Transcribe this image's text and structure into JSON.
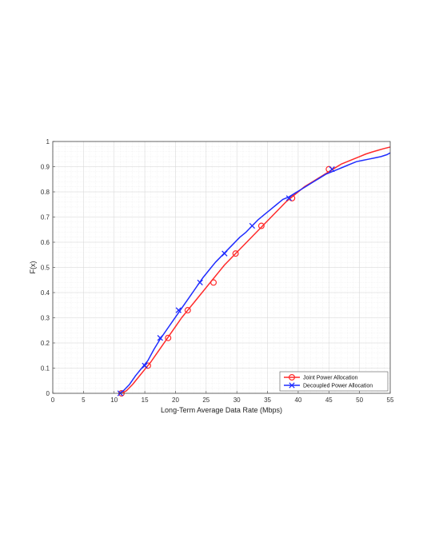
{
  "chart_data": {
    "type": "line",
    "xlabel": "Long-Term Average Data Rate (Mbps)",
    "ylabel": "F(x)",
    "xlim": [
      0,
      55
    ],
    "ylim": [
      0,
      1
    ],
    "xticks": [
      0,
      5,
      10,
      15,
      20,
      25,
      30,
      35,
      40,
      45,
      50,
      55
    ],
    "yticks": [
      0,
      0.1,
      0.2,
      0.3,
      0.4,
      0.5,
      0.6,
      0.7,
      0.8,
      0.9,
      1
    ],
    "grid": true,
    "legend_position": "bottom-right",
    "series": [
      {
        "name": "Joint Power Allocation",
        "color": "#ff2a2a",
        "marker": "circle",
        "x": [
          11.2,
          12,
          13,
          14,
          15,
          16,
          17,
          18,
          19,
          20,
          21,
          22,
          23,
          24,
          25,
          26,
          27,
          28,
          29,
          30,
          31,
          32,
          33,
          34,
          35,
          36,
          37,
          38,
          39,
          40,
          41,
          42,
          43,
          44,
          45,
          46,
          47,
          48,
          49,
          50,
          51,
          52,
          53,
          54,
          55
        ],
        "y": [
          0.0,
          0.01,
          0.035,
          0.065,
          0.095,
          0.125,
          0.16,
          0.195,
          0.23,
          0.265,
          0.3,
          0.33,
          0.36,
          0.39,
          0.42,
          0.45,
          0.48,
          0.51,
          0.535,
          0.56,
          0.585,
          0.61,
          0.635,
          0.66,
          0.685,
          0.71,
          0.735,
          0.76,
          0.78,
          0.8,
          0.82,
          0.835,
          0.85,
          0.865,
          0.88,
          0.895,
          0.91,
          0.92,
          0.93,
          0.94,
          0.95,
          0.958,
          0.965,
          0.972,
          0.978
        ],
        "marker_points": [
          [
            11.2,
            0.0
          ],
          [
            15.5,
            0.11
          ],
          [
            18.8,
            0.22
          ],
          [
            22.0,
            0.33
          ],
          [
            26.2,
            0.44
          ],
          [
            29.8,
            0.555
          ],
          [
            34.0,
            0.665
          ],
          [
            39.0,
            0.775
          ],
          [
            45.0,
            0.89
          ]
        ]
      },
      {
        "name": "Decoupled Power Allocation",
        "color": "#1f2cff",
        "marker": "x",
        "x": [
          10.8,
          11.5,
          12.5,
          13.5,
          14.5,
          15.5,
          16.5,
          17.5,
          18.5,
          19.5,
          20.5,
          21.5,
          22.5,
          23.5,
          24.5,
          25.5,
          26.5,
          27.5,
          28.5,
          29.5,
          30.5,
          31.5,
          32.5,
          33.5,
          34.5,
          35.5,
          36.5,
          37.5,
          38.5,
          39.5,
          40.5,
          41.5,
          42.5,
          43.5,
          44.5,
          45.5,
          46.5,
          47.5,
          48.5,
          49.5,
          50.5,
          51.5,
          52.5,
          53.5,
          54.5,
          55
        ],
        "y": [
          0.0,
          0.01,
          0.035,
          0.07,
          0.1,
          0.13,
          0.175,
          0.215,
          0.25,
          0.285,
          0.32,
          0.355,
          0.39,
          0.425,
          0.46,
          0.49,
          0.52,
          0.545,
          0.57,
          0.595,
          0.62,
          0.64,
          0.665,
          0.69,
          0.71,
          0.73,
          0.75,
          0.77,
          0.78,
          0.795,
          0.81,
          0.825,
          0.84,
          0.855,
          0.87,
          0.88,
          0.89,
          0.9,
          0.91,
          0.92,
          0.925,
          0.93,
          0.935,
          0.94,
          0.948,
          0.955
        ],
        "marker_points": [
          [
            11.0,
            0.0
          ],
          [
            15.0,
            0.11
          ],
          [
            17.5,
            0.22
          ],
          [
            20.5,
            0.33
          ],
          [
            24.0,
            0.44
          ],
          [
            28.0,
            0.555
          ],
          [
            32.5,
            0.665
          ],
          [
            38.5,
            0.775
          ],
          [
            45.5,
            0.89
          ]
        ]
      }
    ]
  }
}
